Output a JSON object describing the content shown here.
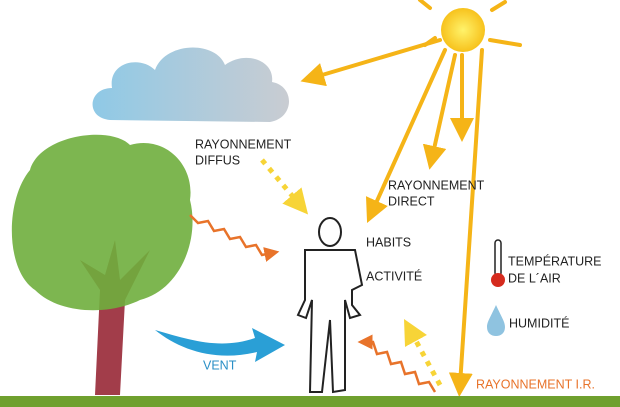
{
  "labels": {
    "diffus": [
      "RAYONNEMENT",
      "DIFFUS"
    ],
    "direct": [
      "RAYONNEMENT",
      "DIRECT"
    ],
    "habits": "HABITS",
    "activite": "ACTIVITÉ",
    "temperature": [
      "TEMPÉRATURE",
      "DE L´AIR"
    ],
    "humidite": "HUMIDITÉ",
    "vent": "VENT",
    "ir": "RAYONNEMENT I.R."
  }
}
